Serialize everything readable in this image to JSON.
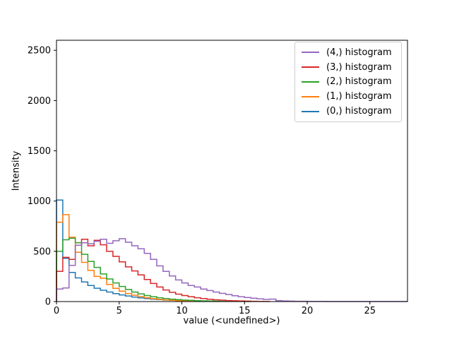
{
  "figure": {
    "background": "#ffffff"
  },
  "chart_data": {
    "type": "step-histogram",
    "title": "",
    "xlabel": "value (<undefined>)",
    "ylabel": "Intensity",
    "xlim": [
      0,
      28
    ],
    "ylim": [
      0,
      2600
    ],
    "x_ticks": [
      0,
      5,
      10,
      15,
      20,
      25
    ],
    "y_ticks": [
      0,
      500,
      1000,
      1500,
      2000,
      2500
    ],
    "bin_start": 0,
    "bin_width": 0.5,
    "grid": false,
    "legend": {
      "position": "upper right",
      "entries": [
        {
          "label": "(4,) histogram",
          "color": "#9467bd"
        },
        {
          "label": "(3,) histogram",
          "color": "#d62728"
        },
        {
          "label": "(2,) histogram",
          "color": "#2ca02c"
        },
        {
          "label": "(1,) histogram",
          "color": "#ff7f0e"
        },
        {
          "label": "(0,) histogram",
          "color": "#1f77b4"
        }
      ]
    },
    "series": [
      {
        "name": "(0,) histogram",
        "color": "#1f77b4",
        "counts": [
          1010,
          430,
          290,
          235,
          195,
          160,
          133,
          112,
          95,
          79,
          66,
          55,
          45,
          37,
          30,
          24,
          19,
          15,
          12,
          9,
          6,
          4
        ]
      },
      {
        "name": "(1,) histogram",
        "color": "#ff7f0e",
        "counts": [
          790,
          865,
          640,
          490,
          390,
          310,
          250,
          232,
          170,
          132,
          104,
          80,
          63,
          50,
          38,
          29,
          22,
          16,
          12,
          9,
          6,
          5,
          3,
          2,
          2,
          1
        ]
      },
      {
        "name": "(2,) histogram",
        "color": "#2ca02c",
        "counts": [
          500,
          615,
          630,
          585,
          470,
          400,
          340,
          275,
          225,
          185,
          150,
          120,
          95,
          76,
          60,
          48,
          38,
          30,
          24,
          19,
          15,
          12,
          9,
          7,
          5,
          4,
          3,
          3,
          2,
          2,
          1
        ]
      },
      {
        "name": "(3,) histogram",
        "color": "#d62728",
        "counts": [
          300,
          440,
          420,
          560,
          620,
          555,
          610,
          565,
          500,
          450,
          395,
          345,
          305,
          265,
          220,
          180,
          145,
          115,
          92,
          74,
          60,
          48,
          38,
          30,
          23,
          18,
          14,
          10,
          8,
          6,
          4,
          3,
          2,
          1
        ]
      },
      {
        "name": "(4,) histogram",
        "color": "#9467bd",
        "counts": [
          125,
          135,
          360,
          560,
          585,
          575,
          600,
          620,
          580,
          605,
          625,
          590,
          555,
          525,
          480,
          420,
          355,
          300,
          255,
          215,
          185,
          160,
          145,
          125,
          110,
          95,
          82,
          70,
          58,
          48,
          40,
          33,
          27,
          22,
          25,
          10,
          6,
          4,
          3,
          3,
          2,
          2,
          2,
          1,
          1,
          1,
          1,
          1,
          1,
          1,
          1,
          1,
          1,
          1,
          1,
          1
        ]
      }
    ]
  }
}
